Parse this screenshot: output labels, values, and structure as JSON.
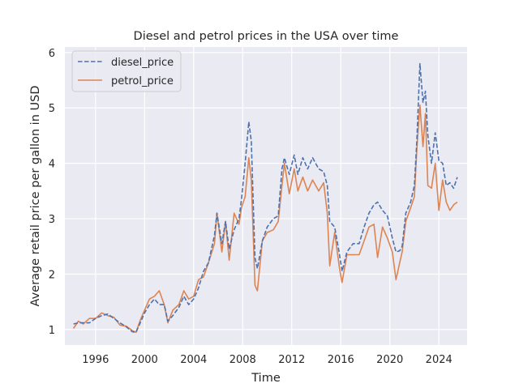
{
  "chart_data": {
    "type": "line",
    "title": "Diesel and petrol prices in the USA over time",
    "xlabel": "Time",
    "ylabel": "Average retail price per gallon in USD",
    "xlim": [
      1993.5,
      2026.3
    ],
    "ylim": [
      0.72,
      6.1
    ],
    "xticks": [
      1996,
      2000,
      2004,
      2008,
      2012,
      2016,
      2020,
      2024
    ],
    "yticks": [
      1,
      2,
      3,
      4,
      5,
      6
    ],
    "grid": true,
    "background": "#eaeaf2",
    "legend": {
      "position": "top-left",
      "entries": [
        "diesel_price",
        "petrol_price"
      ]
    },
    "series": [
      {
        "name": "diesel_price",
        "color": "#4c72b0",
        "dash": "dashed",
        "points": [
          [
            1994.2,
            1.1
          ],
          [
            1994.6,
            1.12
          ],
          [
            1995.0,
            1.12
          ],
          [
            1995.5,
            1.12
          ],
          [
            1996.0,
            1.2
          ],
          [
            1996.5,
            1.25
          ],
          [
            1997.0,
            1.28
          ],
          [
            1997.5,
            1.2
          ],
          [
            1998.0,
            1.12
          ],
          [
            1998.5,
            1.05
          ],
          [
            1999.0,
            0.96
          ],
          [
            1999.3,
            0.95
          ],
          [
            1999.7,
            1.15
          ],
          [
            2000.0,
            1.3
          ],
          [
            2000.4,
            1.45
          ],
          [
            2000.8,
            1.55
          ],
          [
            2001.2,
            1.45
          ],
          [
            2001.6,
            1.45
          ],
          [
            2001.9,
            1.15
          ],
          [
            2002.3,
            1.25
          ],
          [
            2002.8,
            1.4
          ],
          [
            2003.2,
            1.6
          ],
          [
            2003.6,
            1.45
          ],
          [
            2004.0,
            1.55
          ],
          [
            2004.4,
            1.75
          ],
          [
            2004.8,
            2.05
          ],
          [
            2005.2,
            2.2
          ],
          [
            2005.7,
            2.7
          ],
          [
            2005.9,
            3.1
          ],
          [
            2006.3,
            2.55
          ],
          [
            2006.6,
            2.95
          ],
          [
            2006.9,
            2.45
          ],
          [
            2007.3,
            2.8
          ],
          [
            2007.7,
            3.0
          ],
          [
            2007.9,
            3.35
          ],
          [
            2008.2,
            4.0
          ],
          [
            2008.5,
            4.75
          ],
          [
            2008.7,
            4.4
          ],
          [
            2009.0,
            2.3
          ],
          [
            2009.2,
            2.1
          ],
          [
            2009.6,
            2.6
          ],
          [
            2010.0,
            2.85
          ],
          [
            2010.5,
            3.0
          ],
          [
            2010.9,
            3.05
          ],
          [
            2011.2,
            3.9
          ],
          [
            2011.4,
            4.1
          ],
          [
            2011.8,
            3.8
          ],
          [
            2012.2,
            4.15
          ],
          [
            2012.5,
            3.8
          ],
          [
            2012.9,
            4.1
          ],
          [
            2013.3,
            3.9
          ],
          [
            2013.7,
            4.1
          ],
          [
            2014.2,
            3.9
          ],
          [
            2014.6,
            3.85
          ],
          [
            2014.9,
            3.6
          ],
          [
            2015.1,
            2.95
          ],
          [
            2015.5,
            2.85
          ],
          [
            2015.9,
            2.35
          ],
          [
            2016.1,
            2.05
          ],
          [
            2016.5,
            2.4
          ],
          [
            2017.0,
            2.55
          ],
          [
            2017.5,
            2.55
          ],
          [
            2017.9,
            2.85
          ],
          [
            2018.3,
            3.1
          ],
          [
            2018.7,
            3.25
          ],
          [
            2019.0,
            3.3
          ],
          [
            2019.4,
            3.15
          ],
          [
            2019.8,
            3.05
          ],
          [
            2020.2,
            2.65
          ],
          [
            2020.5,
            2.4
          ],
          [
            2020.8,
            2.42
          ],
          [
            2021.0,
            2.5
          ],
          [
            2021.3,
            3.1
          ],
          [
            2021.7,
            3.3
          ],
          [
            2022.0,
            3.6
          ],
          [
            2022.2,
            4.4
          ],
          [
            2022.45,
            5.8
          ],
          [
            2022.7,
            5.1
          ],
          [
            2022.9,
            5.3
          ],
          [
            2023.1,
            4.5
          ],
          [
            2023.4,
            4.0
          ],
          [
            2023.7,
            4.55
          ],
          [
            2024.0,
            4.05
          ],
          [
            2024.3,
            4.0
          ],
          [
            2024.6,
            3.6
          ],
          [
            2024.9,
            3.65
          ],
          [
            2025.2,
            3.55
          ],
          [
            2025.5,
            3.75
          ]
        ]
      },
      {
        "name": "petrol_price",
        "color": "#dd8452",
        "dash": "solid",
        "points": [
          [
            1994.2,
            1.02
          ],
          [
            1994.6,
            1.15
          ],
          [
            1995.0,
            1.1
          ],
          [
            1995.5,
            1.2
          ],
          [
            1996.0,
            1.2
          ],
          [
            1996.5,
            1.3
          ],
          [
            1997.0,
            1.25
          ],
          [
            1997.5,
            1.22
          ],
          [
            1998.0,
            1.08
          ],
          [
            1998.5,
            1.06
          ],
          [
            1999.0,
            0.98
          ],
          [
            1999.3,
            0.95
          ],
          [
            1999.7,
            1.2
          ],
          [
            2000.0,
            1.35
          ],
          [
            2000.4,
            1.55
          ],
          [
            2000.8,
            1.6
          ],
          [
            2001.2,
            1.7
          ],
          [
            2001.6,
            1.45
          ],
          [
            2001.9,
            1.12
          ],
          [
            2002.3,
            1.35
          ],
          [
            2002.8,
            1.45
          ],
          [
            2003.2,
            1.7
          ],
          [
            2003.6,
            1.55
          ],
          [
            2004.0,
            1.6
          ],
          [
            2004.4,
            1.9
          ],
          [
            2004.8,
            1.95
          ],
          [
            2005.2,
            2.2
          ],
          [
            2005.7,
            2.55
          ],
          [
            2005.9,
            3.1
          ],
          [
            2006.3,
            2.4
          ],
          [
            2006.6,
            2.95
          ],
          [
            2006.9,
            2.25
          ],
          [
            2007.3,
            3.1
          ],
          [
            2007.7,
            2.9
          ],
          [
            2007.9,
            3.2
          ],
          [
            2008.2,
            3.4
          ],
          [
            2008.5,
            4.1
          ],
          [
            2008.7,
            3.7
          ],
          [
            2009.0,
            1.8
          ],
          [
            2009.2,
            1.7
          ],
          [
            2009.6,
            2.6
          ],
          [
            2010.0,
            2.75
          ],
          [
            2010.5,
            2.8
          ],
          [
            2010.9,
            2.95
          ],
          [
            2011.2,
            3.6
          ],
          [
            2011.4,
            4.0
          ],
          [
            2011.8,
            3.45
          ],
          [
            2012.2,
            3.9
          ],
          [
            2012.5,
            3.5
          ],
          [
            2012.9,
            3.75
          ],
          [
            2013.3,
            3.5
          ],
          [
            2013.7,
            3.7
          ],
          [
            2014.2,
            3.5
          ],
          [
            2014.6,
            3.65
          ],
          [
            2014.9,
            3.1
          ],
          [
            2015.1,
            2.15
          ],
          [
            2015.5,
            2.75
          ],
          [
            2015.9,
            2.1
          ],
          [
            2016.1,
            1.85
          ],
          [
            2016.5,
            2.35
          ],
          [
            2017.0,
            2.35
          ],
          [
            2017.5,
            2.35
          ],
          [
            2017.9,
            2.6
          ],
          [
            2018.3,
            2.85
          ],
          [
            2018.7,
            2.9
          ],
          [
            2019.0,
            2.3
          ],
          [
            2019.4,
            2.85
          ],
          [
            2019.8,
            2.65
          ],
          [
            2020.2,
            2.4
          ],
          [
            2020.5,
            1.9
          ],
          [
            2020.8,
            2.2
          ],
          [
            2021.0,
            2.4
          ],
          [
            2021.3,
            2.95
          ],
          [
            2021.7,
            3.2
          ],
          [
            2022.0,
            3.4
          ],
          [
            2022.2,
            4.25
          ],
          [
            2022.45,
            5.05
          ],
          [
            2022.7,
            4.3
          ],
          [
            2022.9,
            4.9
          ],
          [
            2023.1,
            3.6
          ],
          [
            2023.4,
            3.55
          ],
          [
            2023.7,
            4.0
          ],
          [
            2024.0,
            3.15
          ],
          [
            2024.3,
            3.7
          ],
          [
            2024.6,
            3.3
          ],
          [
            2024.9,
            3.15
          ],
          [
            2025.2,
            3.25
          ],
          [
            2025.5,
            3.3
          ]
        ]
      }
    ]
  }
}
